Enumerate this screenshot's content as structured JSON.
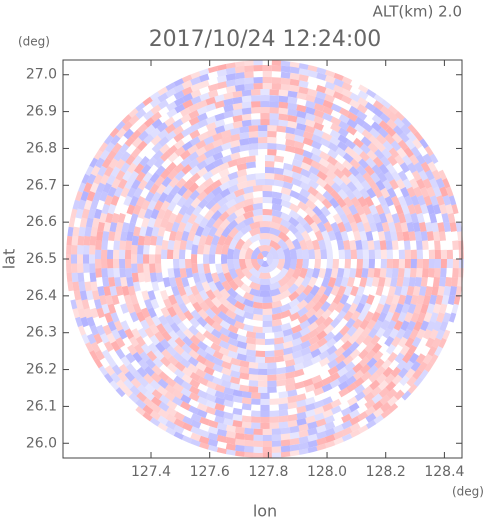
{
  "chart_data": {
    "type": "radar-field",
    "title": "2017/10/24 12:24:00",
    "annotation": "ALT(km)  2.0",
    "x_unit": "(deg)",
    "y_unit": "(deg)",
    "xlabel": "lon",
    "ylabel": "lat",
    "xlim": [
      127.1,
      128.46
    ],
    "ylim": [
      25.96,
      27.04
    ],
    "xticks": [
      127.4,
      127.6,
      127.8,
      {
        "value": 128.0,
        "label": "128.0"
      },
      128.2,
      128.4
    ],
    "yticks": [
      {
        "value": 26.0,
        "label": "26.0"
      },
      26.1,
      26.2,
      26.3,
      26.4,
      26.5,
      26.6,
      26.7,
      26.8,
      26.9,
      {
        "value": 27.0,
        "label": "27.0"
      }
    ]
  }
}
